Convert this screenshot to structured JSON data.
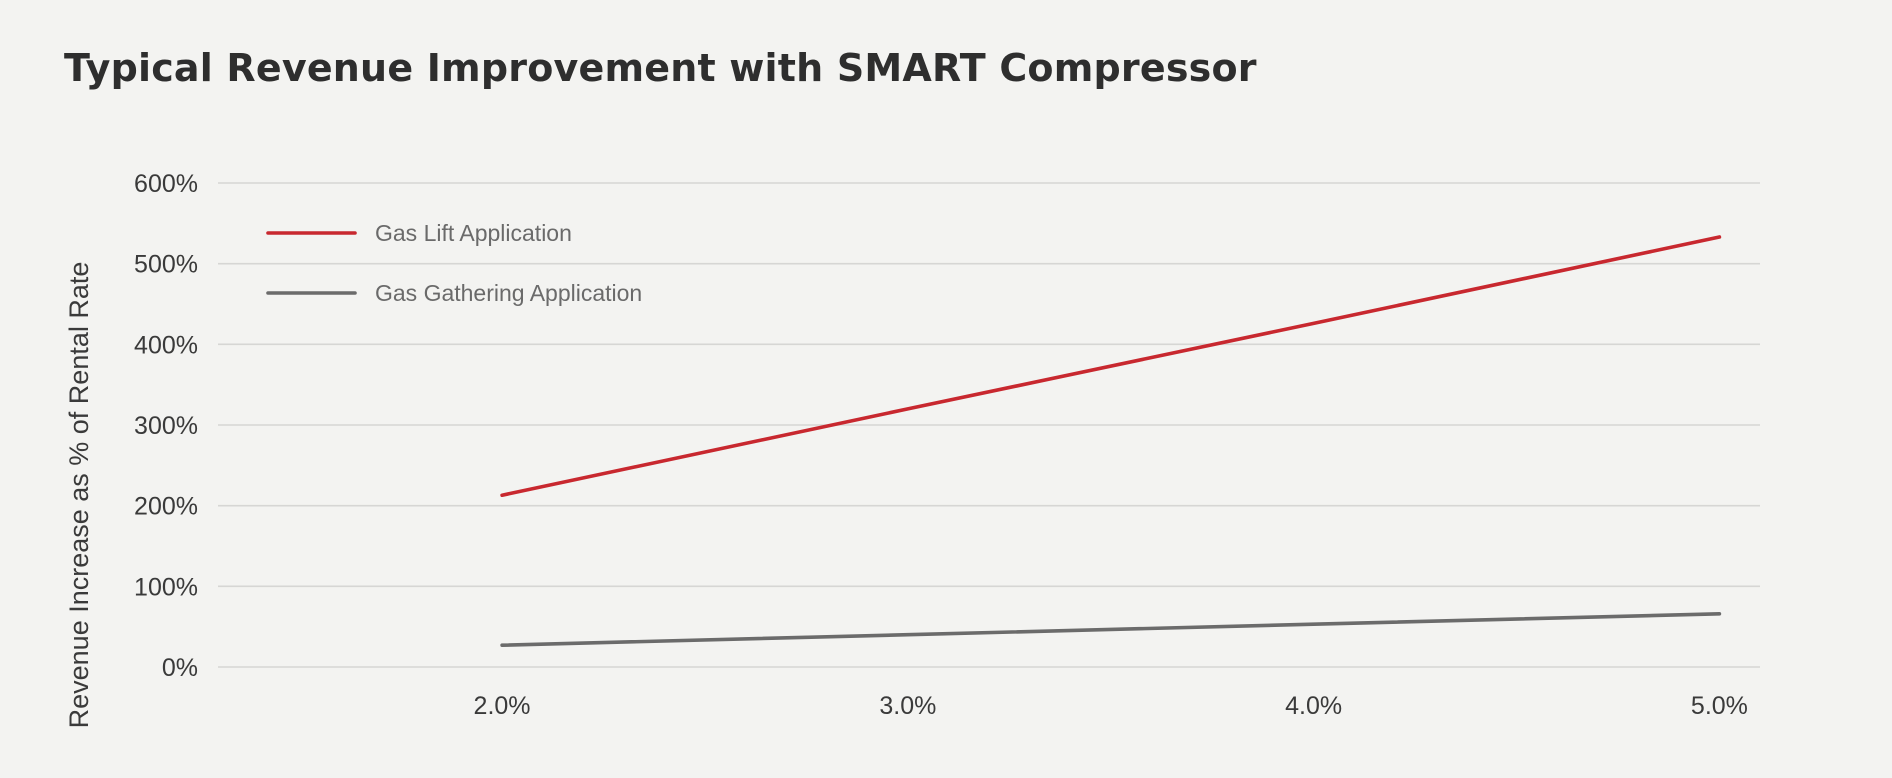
{
  "chart_data": {
    "type": "line",
    "title": "Typical Revenue Improvement with SMART Compressor",
    "xlabel": "",
    "ylabel": "Revenue Increase as % of Rental Rate",
    "x": [
      2.0,
      3.0,
      4.0,
      5.0
    ],
    "x_tick_labels": [
      "2.0%",
      "3.0%",
      "4.0%",
      "5.0%"
    ],
    "xlim": [
      1.3,
      5.1
    ],
    "ylim": [
      0,
      600
    ],
    "y_ticks": [
      0,
      100,
      200,
      300,
      400,
      500,
      600
    ],
    "y_tick_labels": [
      "0%",
      "100%",
      "200%",
      "300%",
      "400%",
      "500%",
      "600%"
    ],
    "grid": "horizontal",
    "legend_position": "top-left",
    "series": [
      {
        "name": "Gas Lift Application",
        "color": "#c8282f",
        "values": [
          213,
          320,
          426,
          533
        ]
      },
      {
        "name": "Gas Gathering Application",
        "color": "#6b6b6b",
        "values": [
          27,
          40,
          53,
          66
        ]
      }
    ]
  }
}
